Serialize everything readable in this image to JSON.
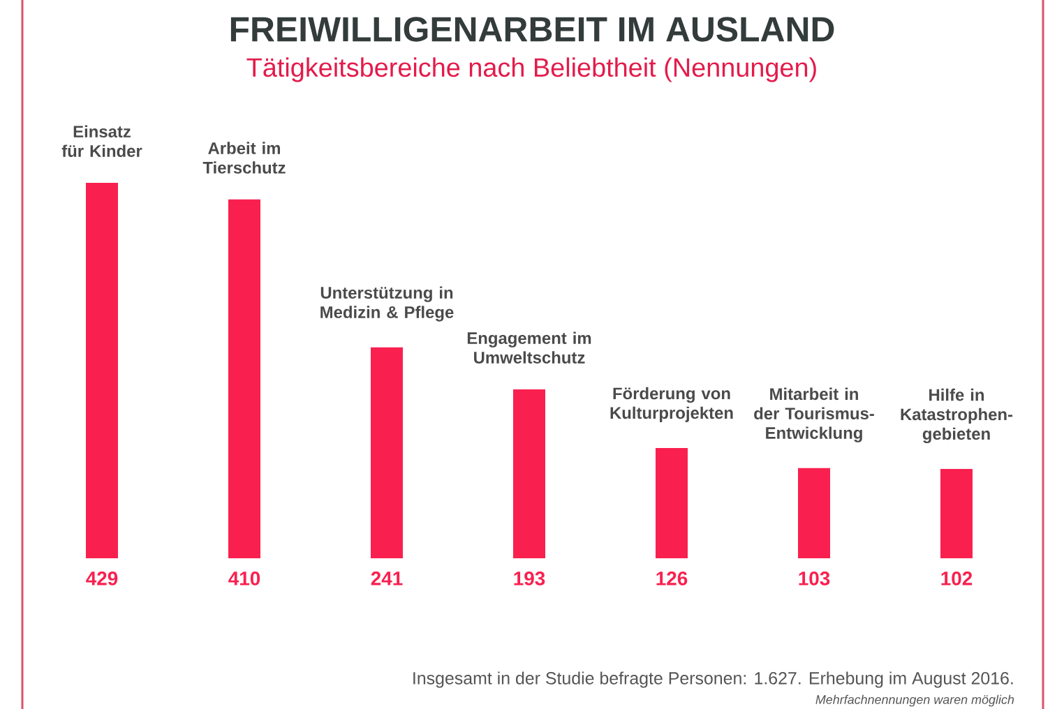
{
  "chart_data": {
    "type": "bar",
    "title": "FREIWILLIGENARBEIT IM AUSLAND",
    "subtitle": "Tätigkeitsbereiche nach Beliebtheit (Nennungen)",
    "categories": [
      "Einsatz für Kinder",
      "Arbeit im Tierschutz",
      "Unterstützung in Medizin & Pflege",
      "Engagement im Umweltschutz",
      "Förderung von Kulturprojekten",
      "Mitarbeit in der Tourismus-Entwicklung",
      "Hilfe in Katastrophen-gebieten"
    ],
    "values": [
      429,
      410,
      241,
      193,
      126,
      103,
      102
    ],
    "color": "#f9204f",
    "data_labels": true,
    "annotations": [
      "Insgesamt in der Studie befragte Personen: 1.627. Erhebung im August 2016.",
      "Mehrfachnennungen waren möglich"
    ]
  }
}
